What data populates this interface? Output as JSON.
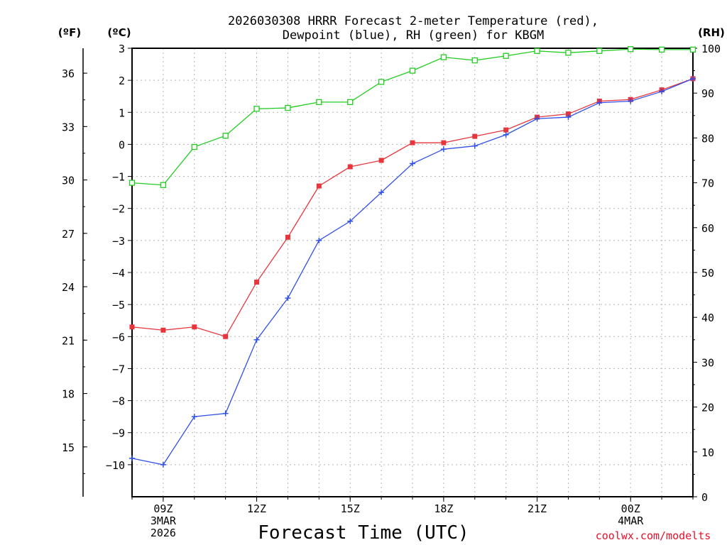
{
  "chart_data": {
    "type": "line",
    "title_line1": "2026030308 HRRR Forecast 2-meter Temperature (red),",
    "title_line2": "Dewpoint (blue), RH (green) for KBGM",
    "xlabel": "Forecast Time (UTC)",
    "credit": "coolwx.com/modelts",
    "unit_labels": {
      "fahrenheit": "(ºF)",
      "celsius": "(ºC)",
      "rh": "(RH)"
    },
    "x_hours": [
      8,
      9,
      10,
      11,
      12,
      13,
      14,
      15,
      16,
      17,
      18,
      19,
      20,
      21,
      22,
      23,
      24,
      25,
      26
    ],
    "x_ticks": [
      {
        "hour": 9,
        "lines": [
          "09Z",
          "3MAR",
          "2026"
        ]
      },
      {
        "hour": 12,
        "lines": [
          "12Z"
        ]
      },
      {
        "hour": 15,
        "lines": [
          "15Z"
        ]
      },
      {
        "hour": 18,
        "lines": [
          "18Z"
        ]
      },
      {
        "hour": 21,
        "lines": [
          "21Z"
        ]
      },
      {
        "hour": 24,
        "lines": [
          "00Z",
          "4MAR"
        ]
      }
    ],
    "xlim": [
      8,
      26
    ],
    "y_celsius": {
      "lim": [
        -11,
        3
      ],
      "ticks": [
        3,
        2,
        1,
        0,
        -1,
        -2,
        -3,
        -4,
        -5,
        -6,
        -7,
        -8,
        -9,
        -10
      ],
      "labels": [
        "3",
        "2",
        "1",
        "0",
        "−1",
        "−2",
        "−3",
        "−4",
        "−5",
        "−6",
        "−7",
        "−8",
        "−9",
        "−10"
      ]
    },
    "y_fahrenheit": {
      "ticks": [
        36,
        33,
        30,
        27,
        24,
        21,
        18,
        15
      ],
      "labels": [
        "36",
        "33",
        "30",
        "27",
        "24",
        "21",
        "18",
        "15"
      ]
    },
    "y_rh": {
      "lim": [
        0,
        100
      ],
      "ticks": [
        100,
        90,
        80,
        70,
        60,
        50,
        40,
        30,
        20,
        10,
        0
      ],
      "labels": [
        "100",
        "90",
        "80",
        "70",
        "60",
        "50",
        "40",
        "30",
        "20",
        "10",
        "0"
      ]
    },
    "series": [
      {
        "name": "Temperature",
        "axis": "celsius",
        "color": "#e8353c",
        "marker": "filled-square",
        "values": [
          -5.7,
          -5.8,
          -5.7,
          -6.0,
          -4.3,
          -2.9,
          -1.3,
          -0.7,
          -0.5,
          0.05,
          0.05,
          0.25,
          0.45,
          0.85,
          0.95,
          1.35,
          1.4,
          1.7,
          2.05
        ]
      },
      {
        "name": "Dewpoint",
        "axis": "celsius",
        "color": "#3050e8",
        "marker": "plus",
        "values": [
          -9.8,
          -10.0,
          -8.5,
          -8.4,
          -6.1,
          -4.8,
          -3.0,
          -2.4,
          -1.5,
          -0.6,
          -0.15,
          -0.05,
          0.3,
          0.8,
          0.85,
          1.3,
          1.35,
          1.65,
          2.05
        ]
      },
      {
        "name": "RH",
        "axis": "rh",
        "color": "#22cc22",
        "marker": "open-square",
        "values": [
          70,
          69.5,
          78,
          80.5,
          86.5,
          86.7,
          88,
          88,
          92.5,
          95,
          98,
          97.3,
          98.3,
          99.4,
          99,
          99.4,
          99.8,
          99.7,
          99.7
        ]
      }
    ]
  }
}
